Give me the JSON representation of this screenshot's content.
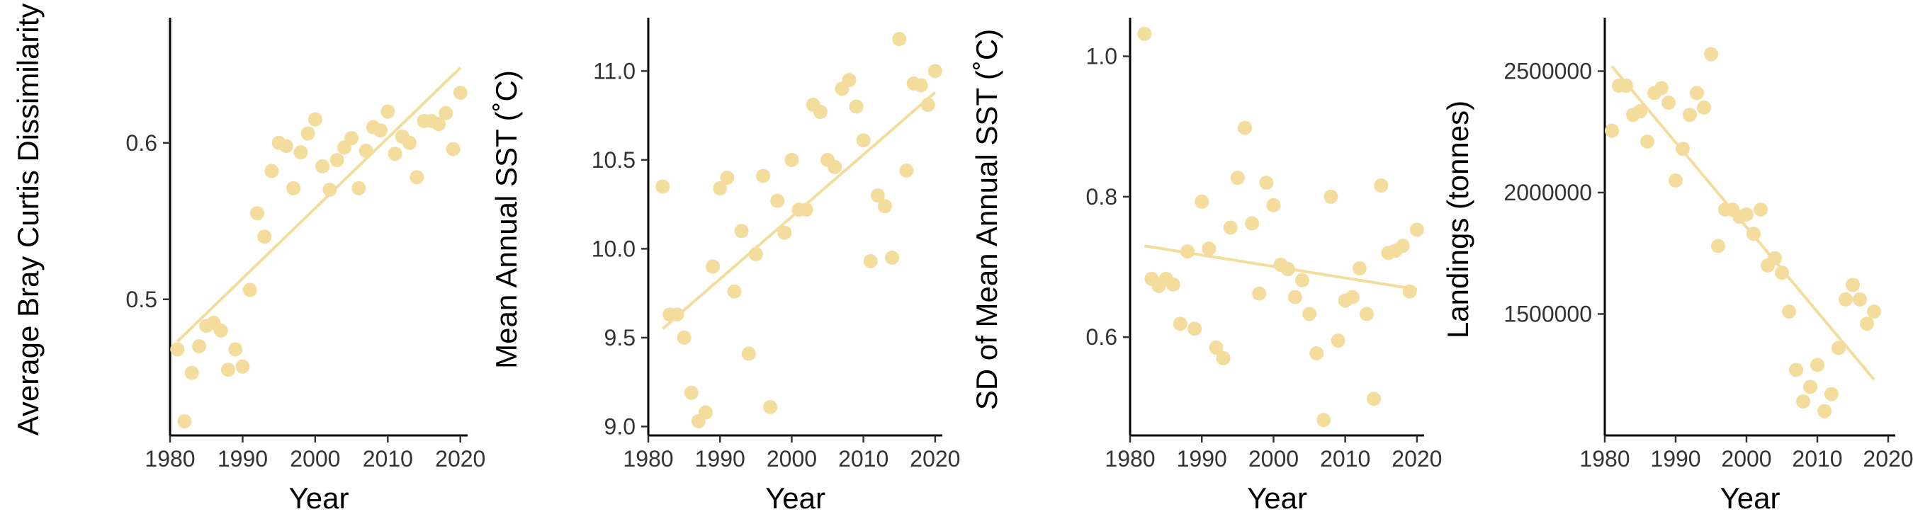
{
  "colors": {
    "point": "#f4dc9d",
    "trend": "#f4dc9d",
    "axis": "#000000",
    "tick_text": "#333333"
  },
  "chart_data": [
    {
      "type": "scatter",
      "xlabel": "Year",
      "ylabel": "Average Bray Curtis Dissimilarity",
      "xlim": [
        1980,
        2021
      ],
      "ylim": [
        0.413,
        0.68
      ],
      "x_ticks": [
        1980,
        1990,
        2000,
        2010,
        2020
      ],
      "y_ticks": [
        0.5,
        0.6
      ],
      "trend_line": {
        "x": [
          1981,
          2020
        ],
        "y": [
          0.473,
          0.648
        ]
      },
      "points": [
        {
          "x": 1981,
          "y": 0.468
        },
        {
          "x": 1982,
          "y": 0.422
        },
        {
          "x": 1983,
          "y": 0.453
        },
        {
          "x": 1984,
          "y": 0.47
        },
        {
          "x": 1985,
          "y": 0.483
        },
        {
          "x": 1986,
          "y": 0.485
        },
        {
          "x": 1987,
          "y": 0.48
        },
        {
          "x": 1988,
          "y": 0.455
        },
        {
          "x": 1989,
          "y": 0.468
        },
        {
          "x": 1990,
          "y": 0.457
        },
        {
          "x": 1991,
          "y": 0.506
        },
        {
          "x": 1992,
          "y": 0.555
        },
        {
          "x": 1993,
          "y": 0.54
        },
        {
          "x": 1994,
          "y": 0.582
        },
        {
          "x": 1995,
          "y": 0.6
        },
        {
          "x": 1996,
          "y": 0.598
        },
        {
          "x": 1997,
          "y": 0.571
        },
        {
          "x": 1998,
          "y": 0.594
        },
        {
          "x": 1999,
          "y": 0.606
        },
        {
          "x": 2000,
          "y": 0.615
        },
        {
          "x": 2001,
          "y": 0.585
        },
        {
          "x": 2002,
          "y": 0.57
        },
        {
          "x": 2003,
          "y": 0.589
        },
        {
          "x": 2004,
          "y": 0.597
        },
        {
          "x": 2005,
          "y": 0.603
        },
        {
          "x": 2006,
          "y": 0.571
        },
        {
          "x": 2007,
          "y": 0.595
        },
        {
          "x": 2008,
          "y": 0.61
        },
        {
          "x": 2009,
          "y": 0.608
        },
        {
          "x": 2010,
          "y": 0.62
        },
        {
          "x": 2011,
          "y": 0.593
        },
        {
          "x": 2012,
          "y": 0.604
        },
        {
          "x": 2013,
          "y": 0.6
        },
        {
          "x": 2014,
          "y": 0.578
        },
        {
          "x": 2015,
          "y": 0.614
        },
        {
          "x": 2016,
          "y": 0.614
        },
        {
          "x": 2017,
          "y": 0.612
        },
        {
          "x": 2018,
          "y": 0.619
        },
        {
          "x": 2019,
          "y": 0.596
        },
        {
          "x": 2020,
          "y": 0.632
        }
      ]
    },
    {
      "type": "scatter",
      "xlabel": "Year",
      "ylabel": "Mean Annual SST (˚C)",
      "xlim": [
        1980,
        2021
      ],
      "ylim": [
        8.95,
        11.3
      ],
      "x_ticks": [
        1980,
        1990,
        2000,
        2010,
        2020
      ],
      "y_ticks": [
        9.0,
        9.5,
        10.0,
        10.5,
        11.0
      ],
      "y_tick_labels": [
        "9.0",
        "9.5",
        "10.0",
        "10.5",
        "11.0"
      ],
      "trend_line": {
        "x": [
          1982,
          2020
        ],
        "y": [
          9.55,
          10.88
        ]
      },
      "points": [
        {
          "x": 1982,
          "y": 10.35
        },
        {
          "x": 1983,
          "y": 9.63
        },
        {
          "x": 1984,
          "y": 9.63
        },
        {
          "x": 1985,
          "y": 9.5
        },
        {
          "x": 1986,
          "y": 9.19
        },
        {
          "x": 1987,
          "y": 9.03
        },
        {
          "x": 1988,
          "y": 9.08
        },
        {
          "x": 1989,
          "y": 9.9
        },
        {
          "x": 1990,
          "y": 10.34
        },
        {
          "x": 1991,
          "y": 10.4
        },
        {
          "x": 1992,
          "y": 9.76
        },
        {
          "x": 1993,
          "y": 10.1
        },
        {
          "x": 1994,
          "y": 9.41
        },
        {
          "x": 1995,
          "y": 9.97
        },
        {
          "x": 1996,
          "y": 10.41
        },
        {
          "x": 1997,
          "y": 9.11
        },
        {
          "x": 1998,
          "y": 10.27
        },
        {
          "x": 1999,
          "y": 10.09
        },
        {
          "x": 2000,
          "y": 10.5
        },
        {
          "x": 2001,
          "y": 10.22
        },
        {
          "x": 2002,
          "y": 10.22
        },
        {
          "x": 2003,
          "y": 10.81
        },
        {
          "x": 2004,
          "y": 10.77
        },
        {
          "x": 2005,
          "y": 10.5
        },
        {
          "x": 2006,
          "y": 10.46
        },
        {
          "x": 2007,
          "y": 10.9
        },
        {
          "x": 2008,
          "y": 10.95
        },
        {
          "x": 2009,
          "y": 10.8
        },
        {
          "x": 2010,
          "y": 10.61
        },
        {
          "x": 2011,
          "y": 9.93
        },
        {
          "x": 2012,
          "y": 10.3
        },
        {
          "x": 2013,
          "y": 10.24
        },
        {
          "x": 2014,
          "y": 9.95
        },
        {
          "x": 2015,
          "y": 11.18
        },
        {
          "x": 2016,
          "y": 10.44
        },
        {
          "x": 2017,
          "y": 10.93
        },
        {
          "x": 2018,
          "y": 10.92
        },
        {
          "x": 2019,
          "y": 10.81
        },
        {
          "x": 2020,
          "y": 11.0
        }
      ]
    },
    {
      "type": "scatter",
      "xlabel": "Year",
      "ylabel": "SD of Mean Annual SST (˚C)",
      "xlim": [
        1980,
        2021
      ],
      "ylim": [
        0.46,
        1.055
      ],
      "x_ticks": [
        1980,
        1990,
        2000,
        2010,
        2020
      ],
      "y_ticks": [
        0.6,
        0.8,
        1.0
      ],
      "y_tick_labels": [
        "0.6",
        "0.8",
        "1.0"
      ],
      "trend_line": {
        "x": [
          1982,
          2020
        ],
        "y": [
          0.73,
          0.668
        ]
      },
      "points": [
        {
          "x": 1982,
          "y": 1.032
        },
        {
          "x": 1983,
          "y": 0.683
        },
        {
          "x": 1984,
          "y": 0.673
        },
        {
          "x": 1985,
          "y": 0.683
        },
        {
          "x": 1986,
          "y": 0.675
        },
        {
          "x": 1987,
          "y": 0.619
        },
        {
          "x": 1988,
          "y": 0.722
        },
        {
          "x": 1989,
          "y": 0.612
        },
        {
          "x": 1990,
          "y": 0.793
        },
        {
          "x": 1991,
          "y": 0.726
        },
        {
          "x": 1992,
          "y": 0.585
        },
        {
          "x": 1993,
          "y": 0.57
        },
        {
          "x": 1994,
          "y": 0.756
        },
        {
          "x": 1995,
          "y": 0.827
        },
        {
          "x": 1996,
          "y": 0.898
        },
        {
          "x": 1997,
          "y": 0.762
        },
        {
          "x": 1998,
          "y": 0.662
        },
        {
          "x": 1999,
          "y": 0.82
        },
        {
          "x": 2000,
          "y": 0.788
        },
        {
          "x": 2001,
          "y": 0.703
        },
        {
          "x": 2002,
          "y": 0.697
        },
        {
          "x": 2003,
          "y": 0.657
        },
        {
          "x": 2004,
          "y": 0.681
        },
        {
          "x": 2005,
          "y": 0.633
        },
        {
          "x": 2006,
          "y": 0.577
        },
        {
          "x": 2007,
          "y": 0.482
        },
        {
          "x": 2008,
          "y": 0.8
        },
        {
          "x": 2009,
          "y": 0.595
        },
        {
          "x": 2010,
          "y": 0.652
        },
        {
          "x": 2011,
          "y": 0.657
        },
        {
          "x": 2012,
          "y": 0.698
        },
        {
          "x": 2013,
          "y": 0.633
        },
        {
          "x": 2014,
          "y": 0.512
        },
        {
          "x": 2015,
          "y": 0.816
        },
        {
          "x": 2016,
          "y": 0.72
        },
        {
          "x": 2017,
          "y": 0.723
        },
        {
          "x": 2018,
          "y": 0.73
        },
        {
          "x": 2019,
          "y": 0.665
        },
        {
          "x": 2020,
          "y": 0.753
        }
      ]
    },
    {
      "type": "scatter",
      "xlabel": "Year",
      "ylabel": "Landings (tonnes)",
      "xlim": [
        1980,
        2021
      ],
      "ylim": [
        1000000,
        2720000
      ],
      "x_ticks": [
        1980,
        1990,
        2000,
        2010,
        2020
      ],
      "y_ticks": [
        1500000,
        2000000,
        2500000
      ],
      "y_tick_labels": [
        "1500000",
        "2000000",
        "2500000"
      ],
      "trend_line": {
        "x": [
          1981,
          2018
        ],
        "y": [
          2520000,
          1230000
        ]
      },
      "points": [
        {
          "x": 1981,
          "y": 2255000
        },
        {
          "x": 1982,
          "y": 2440000
        },
        {
          "x": 1983,
          "y": 2440000
        },
        {
          "x": 1984,
          "y": 2320000
        },
        {
          "x": 1985,
          "y": 2335000
        },
        {
          "x": 1986,
          "y": 2210000
        },
        {
          "x": 1987,
          "y": 2410000
        },
        {
          "x": 1988,
          "y": 2430000
        },
        {
          "x": 1989,
          "y": 2370000
        },
        {
          "x": 1990,
          "y": 2050000
        },
        {
          "x": 1991,
          "y": 2180000
        },
        {
          "x": 1992,
          "y": 2320000
        },
        {
          "x": 1993,
          "y": 2410000
        },
        {
          "x": 1994,
          "y": 2350000
        },
        {
          "x": 1995,
          "y": 2570000
        },
        {
          "x": 1996,
          "y": 1780000
        },
        {
          "x": 1997,
          "y": 1930000
        },
        {
          "x": 1998,
          "y": 1930000
        },
        {
          "x": 1999,
          "y": 1900000
        },
        {
          "x": 2000,
          "y": 1910000
        },
        {
          "x": 2001,
          "y": 1830000
        },
        {
          "x": 2002,
          "y": 1930000
        },
        {
          "x": 2003,
          "y": 1700000
        },
        {
          "x": 2004,
          "y": 1730000
        },
        {
          "x": 2005,
          "y": 1670000
        },
        {
          "x": 2006,
          "y": 1510000
        },
        {
          "x": 2007,
          "y": 1270000
        },
        {
          "x": 2008,
          "y": 1140000
        },
        {
          "x": 2009,
          "y": 1200000
        },
        {
          "x": 2010,
          "y": 1290000
        },
        {
          "x": 2011,
          "y": 1100000
        },
        {
          "x": 2012,
          "y": 1170000
        },
        {
          "x": 2013,
          "y": 1360000
        },
        {
          "x": 2014,
          "y": 1560000
        },
        {
          "x": 2015,
          "y": 1620000
        },
        {
          "x": 2016,
          "y": 1560000
        },
        {
          "x": 2017,
          "y": 1460000
        },
        {
          "x": 2018,
          "y": 1510000
        }
      ]
    }
  ]
}
